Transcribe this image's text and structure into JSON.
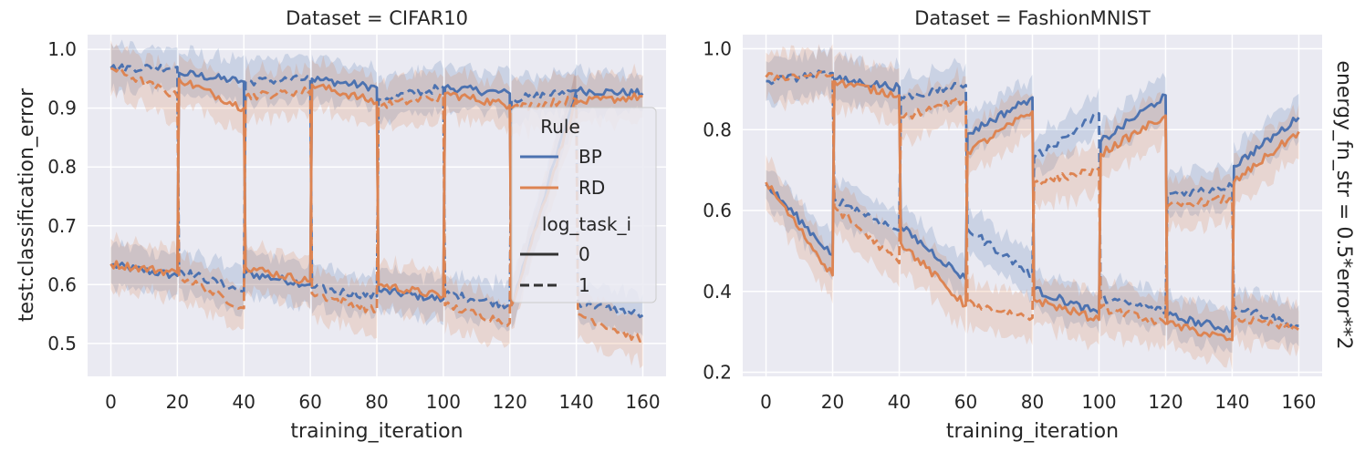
{
  "figure": {
    "row_label": "energy_fn_str = 0.5*error**2"
  },
  "chart_data": [
    {
      "type": "line",
      "title": "Dataset = CIFAR10",
      "xlabel": "training_iteration",
      "ylabel": "test:classification_error",
      "xlim": [
        -7,
        167
      ],
      "ylim": [
        0.444,
        1.025
      ],
      "xticks": [
        0,
        20,
        40,
        60,
        80,
        100,
        120,
        140,
        160
      ],
      "yticks": [
        0.5,
        0.6,
        0.7,
        0.8,
        0.9,
        1.0
      ],
      "ytick_labels": [
        "0.5",
        "0.6",
        "0.7",
        "0.8",
        "0.9",
        "1.0"
      ],
      "grid": true,
      "x": [
        0,
        20,
        20.5,
        40,
        40.5,
        60,
        60.5,
        80,
        80.5,
        100,
        100.5,
        120,
        120.5,
        140,
        140.5,
        160
      ],
      "series": [
        {
          "rule": "BP",
          "log_task_i": "0",
          "color": "#4c72b0",
          "dash": "solid",
          "values": [
            0.633,
            0.615,
            0.96,
            0.945,
            0.62,
            0.6,
            0.95,
            0.935,
            0.59,
            0.575,
            0.935,
            0.925,
            0.565,
            0.93,
            0.93,
            0.925
          ],
          "band": 0.035
        },
        {
          "rule": "BP",
          "log_task_i": "1",
          "color": "#4c72b0",
          "dash": "dashed",
          "values": [
            0.968,
            0.97,
            0.625,
            0.588,
            0.945,
            0.95,
            0.595,
            0.58,
            0.915,
            0.935,
            0.585,
            0.565,
            0.915,
            0.93,
            0.57,
            0.548
          ],
          "band": 0.035
        },
        {
          "rule": "RD",
          "log_task_i": "0",
          "color": "#dd8452",
          "dash": "solid",
          "values": [
            0.635,
            0.62,
            0.95,
            0.9,
            0.63,
            0.605,
            0.94,
            0.91,
            0.6,
            0.58,
            0.925,
            0.905,
            0.565,
            0.915,
            0.91,
            0.92
          ],
          "band": 0.04
        },
        {
          "rule": "RD",
          "log_task_i": "1",
          "color": "#dd8452",
          "dash": "dashed",
          "values": [
            0.968,
            0.92,
            0.615,
            0.56,
            0.92,
            0.93,
            0.585,
            0.555,
            0.905,
            0.92,
            0.565,
            0.535,
            0.9,
            0.915,
            0.55,
            0.505
          ],
          "band": 0.04
        }
      ]
    },
    {
      "type": "line",
      "title": "Dataset = FashionMNIST",
      "xlabel": "training_iteration",
      "ylabel": "",
      "xlim": [
        -7,
        167
      ],
      "ylim": [
        0.19,
        1.035
      ],
      "xticks": [
        0,
        20,
        40,
        60,
        80,
        100,
        120,
        140,
        160
      ],
      "yticks": [
        0.2,
        0.4,
        0.6,
        0.8,
        1.0
      ],
      "ytick_labels": [
        "0.2",
        "0.4",
        "0.6",
        "0.8",
        "1.0"
      ],
      "grid": true,
      "x": [
        0,
        20,
        20.5,
        40,
        40.5,
        60,
        60.5,
        80,
        80.5,
        100,
        100.5,
        120,
        120.5,
        140,
        140.5,
        160
      ],
      "series": [
        {
          "rule": "BP",
          "log_task_i": "0",
          "color": "#4c72b0",
          "dash": "solid",
          "values": [
            0.665,
            0.49,
            0.925,
            0.905,
            0.56,
            0.43,
            0.79,
            0.88,
            0.405,
            0.345,
            0.77,
            0.885,
            0.34,
            0.305,
            0.71,
            0.83
          ],
          "band": 0.05
        },
        {
          "rule": "BP",
          "log_task_i": "1",
          "color": "#4c72b0",
          "dash": "dashed",
          "values": [
            0.92,
            0.94,
            0.63,
            0.55,
            0.88,
            0.91,
            0.555,
            0.44,
            0.73,
            0.84,
            0.385,
            0.35,
            0.64,
            0.66,
            0.365,
            0.315
          ],
          "band": 0.05
        },
        {
          "rule": "RD",
          "log_task_i": "0",
          "color": "#dd8452",
          "dash": "solid",
          "values": [
            0.67,
            0.44,
            0.92,
            0.885,
            0.52,
            0.365,
            0.745,
            0.845,
            0.38,
            0.33,
            0.74,
            0.835,
            0.32,
            0.28,
            0.67,
            0.795
          ],
          "band": 0.06
        },
        {
          "rule": "RD",
          "log_task_i": "1",
          "color": "#dd8452",
          "dash": "dashed",
          "values": [
            0.93,
            0.935,
            0.61,
            0.47,
            0.83,
            0.875,
            0.37,
            0.335,
            0.67,
            0.7,
            0.36,
            0.32,
            0.61,
            0.63,
            0.335,
            0.305
          ],
          "band": 0.06
        }
      ]
    }
  ],
  "legend": {
    "title_rule": "Rule",
    "rules": [
      {
        "label": "BP",
        "color": "#4c72b0"
      },
      {
        "label": "RD",
        "color": "#dd8452"
      }
    ],
    "title_task": "log_task_i",
    "tasks": [
      {
        "label": "0",
        "dash": "solid"
      },
      {
        "label": "1",
        "dash": "dashed"
      }
    ],
    "placement": "center-right of left panel"
  },
  "colors": {
    "axes_bg": "#eaeaf2",
    "grid": "#ffffff",
    "text": "#262626"
  }
}
